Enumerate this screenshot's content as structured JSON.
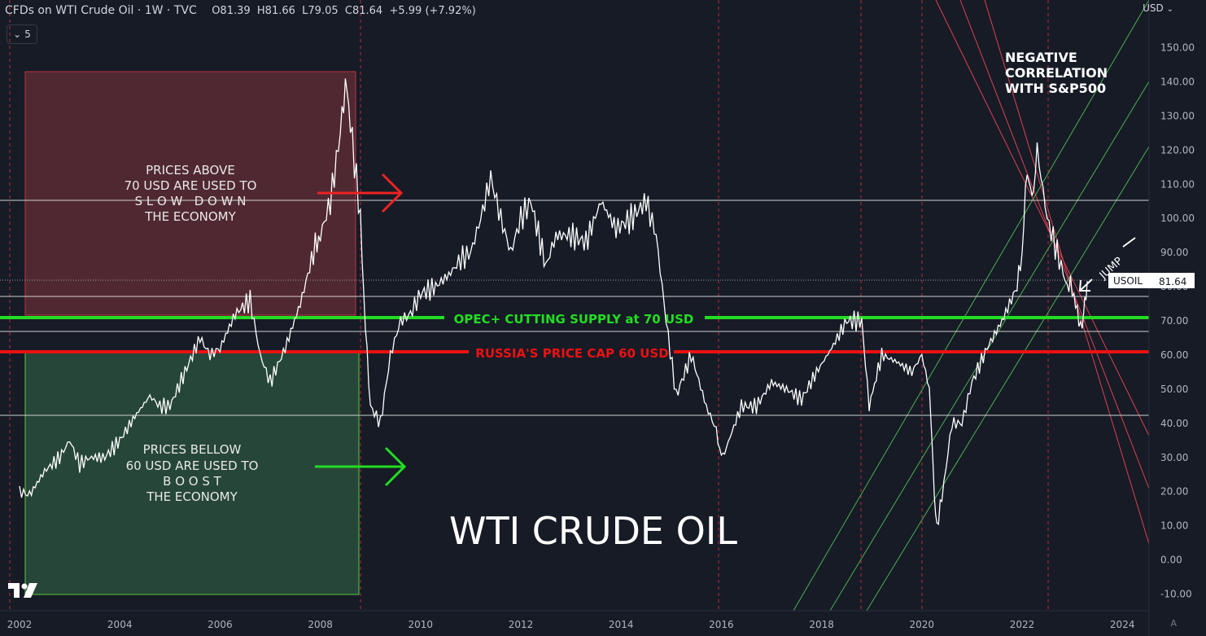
{
  "header": {
    "title": "CFDs on WTI Crude Oil · 1W · TVC",
    "open": "O81.39",
    "high": "H81.66",
    "low": "L79.05",
    "close": "C81.64",
    "change": "+5.99 (+7.92%)",
    "indicator_count": "5"
  },
  "axis_unit": "USD",
  "auto_label": "A",
  "price_tag": {
    "symbol": "USOIL",
    "value": "81.64"
  },
  "colors": {
    "background": "#161b26",
    "price": "#ffffff",
    "opec_line": "#22dd22",
    "cap_line": "#ee1111",
    "red_zone": "#5a2a35",
    "green_zone": "#284b3c",
    "channel_red": "#e04050",
    "channel_green": "#4caf50"
  },
  "annotations": {
    "main_title": "WTI CRUDE OIL",
    "opec_label": "OPEC+ CUTTING SUPPLY at 70 USD",
    "cap_label": "RUSSIA'S PRICE CAP 60 USD",
    "above_line1": "PRICES ABOVE",
    "above_line2": "70 USD ARE USED TO",
    "above_line3": "S L O W   D O W N",
    "above_line4": "THE ECONOMY",
    "below_line1": "PRICES BELLOW",
    "below_line2": "60 USD ARE USED TO",
    "below_line3": "B O O S T",
    "below_line4": "THE ECONOMY",
    "neg_line1": "NEGATIVE",
    "neg_line2": "CORRELATION",
    "neg_line3": "WITH S&P500",
    "jump": "JUMP"
  },
  "chart_data": {
    "type": "line",
    "title": "CFDs on WTI Crude Oil · 1W · TVC",
    "ylabel": "USD",
    "ylim": [
      -13,
      157
    ],
    "xlim": [
      2002.0,
      2024.65
    ],
    "yticks": [
      "150.00",
      "140.00",
      "130.00",
      "120.00",
      "110.00",
      "100.00",
      "90.00",
      "80.00",
      "70.00",
      "60.00",
      "50.00",
      "40.00",
      "30.00",
      "20.00",
      "10.00",
      "0.00",
      "-10.00"
    ],
    "ytick_values": [
      150,
      140,
      130,
      120,
      110,
      100,
      90,
      80,
      70,
      60,
      50,
      40,
      30,
      20,
      10,
      0,
      -10
    ],
    "xticks": [
      "2002",
      "2004",
      "2006",
      "2008",
      "2010",
      "2012",
      "2014",
      "2016",
      "2018",
      "2020",
      "2022",
      "2024"
    ],
    "xtick_values": [
      2002,
      2004,
      2006,
      2008,
      2010,
      2012,
      2014,
      2016,
      2018,
      2020,
      2022,
      2024
    ],
    "series": [
      {
        "x": [
          2002.0,
          2002.2,
          2002.5,
          2002.8,
          2003.0,
          2003.2,
          2003.4,
          2003.7,
          2004.0,
          2004.3,
          2004.6,
          2004.8,
          2005.0,
          2005.3,
          2005.6,
          2005.8,
          2006.0,
          2006.3,
          2006.6,
          2006.8,
          2007.0,
          2007.3,
          2007.6,
          2007.9,
          2008.0,
          2008.2,
          2008.4,
          2008.5,
          2008.6,
          2008.8,
          2008.9,
          2009.0,
          2009.2,
          2009.4,
          2009.6,
          2009.8,
          2010.0,
          2010.3,
          2010.6,
          2010.8,
          2011.0,
          2011.2,
          2011.4,
          2011.6,
          2011.8,
          2012.0,
          2012.2,
          2012.5,
          2012.7,
          2013.0,
          2013.3,
          2013.6,
          2013.9,
          2014.2,
          2014.5,
          2014.7,
          2014.9,
          2015.1,
          2015.4,
          2015.7,
          2015.9,
          2016.0,
          2016.1,
          2016.4,
          2016.7,
          2017.0,
          2017.3,
          2017.6,
          2017.9,
          2018.2,
          2018.5,
          2018.8,
          2018.95,
          2019.2,
          2019.5,
          2019.8,
          2020.0,
          2020.15,
          2020.25,
          2020.3,
          2020.4,
          2020.6,
          2020.8,
          2021.0,
          2021.3,
          2021.6,
          2021.9,
          2022.0,
          2022.1,
          2022.2,
          2022.3,
          2022.5,
          2022.7,
          2022.9,
          2023.0,
          2023.1,
          2023.2,
          2023.25,
          2023.3
        ],
        "y": [
          20,
          19,
          26,
          30,
          35,
          28,
          30,
          30,
          35,
          42,
          48,
          45,
          45,
          55,
          65,
          60,
          62,
          72,
          76,
          60,
          52,
          62,
          75,
          92,
          95,
          105,
          125,
          140,
          128,
          100,
          68,
          45,
          40,
          60,
          70,
          72,
          78,
          80,
          84,
          88,
          90,
          100,
          112,
          100,
          90,
          100,
          105,
          86,
          95,
          95,
          93,
          105,
          97,
          100,
          105,
          95,
          70,
          48,
          60,
          45,
          38,
          30,
          33,
          45,
          45,
          52,
          50,
          47,
          55,
          62,
          70,
          70,
          45,
          60,
          58,
          55,
          60,
          50,
          20,
          10,
          18,
          40,
          40,
          52,
          62,
          70,
          80,
          90,
          115,
          105,
          120,
          100,
          90,
          80,
          80,
          72,
          68,
          75,
          81.64
        ]
      }
    ]
  }
}
